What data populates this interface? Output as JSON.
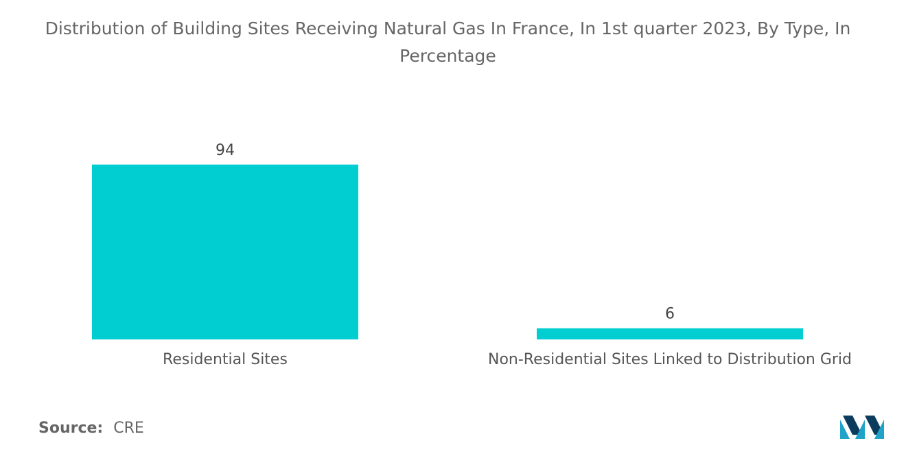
{
  "chart_data": {
    "type": "bar",
    "title": "Distribution of Building Sites Receiving Natural Gas In France, In 1st quarter 2023, By Type, In Percentage",
    "categories": [
      "Residential Sites",
      "Non-Residential Sites Linked to Distribution Grid"
    ],
    "values": [
      94,
      6
    ],
    "value_labels": [
      "94",
      "6"
    ],
    "xlabel": "",
    "ylabel": "",
    "ylim": [
      0,
      94
    ],
    "grid": false,
    "legend": "none",
    "bar_color": "#00CED1"
  },
  "source": {
    "label": "Source:",
    "value": "CRE"
  },
  "logo": {
    "icon": "mordor-intelligence-logo",
    "colors": [
      "#1FA3C8",
      "#0B3C5D"
    ]
  }
}
